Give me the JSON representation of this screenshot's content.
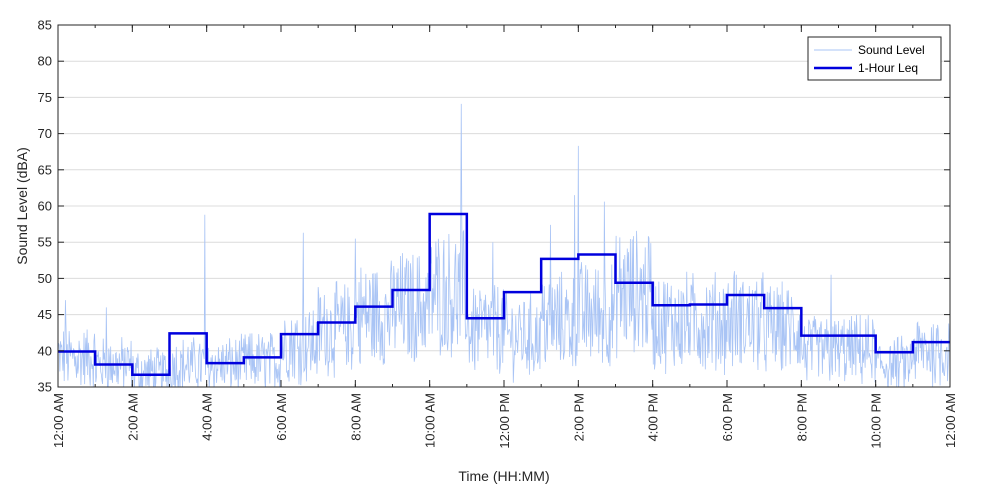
{
  "chart_data": {
    "type": "line",
    "xlabel": "Time (HH:MM)",
    "ylabel": "Sound Level (dBA)",
    "ylim": [
      35,
      85
    ],
    "y_ticks": [
      35,
      40,
      45,
      50,
      55,
      60,
      65,
      70,
      75,
      80,
      85
    ],
    "x_range_hours": [
      0,
      24
    ],
    "x_ticks": [
      {
        "hour": 0,
        "label": "12:00 AM"
      },
      {
        "hour": 2,
        "label": "2:00 AM"
      },
      {
        "hour": 4,
        "label": "4:00 AM"
      },
      {
        "hour": 6,
        "label": "6:00 AM"
      },
      {
        "hour": 8,
        "label": "8:00 AM"
      },
      {
        "hour": 10,
        "label": "10:00 AM"
      },
      {
        "hour": 12,
        "label": "12:00 PM"
      },
      {
        "hour": 14,
        "label": "2:00 PM"
      },
      {
        "hour": 16,
        "label": "4:00 PM"
      },
      {
        "hour": 18,
        "label": "6:00 PM"
      },
      {
        "hour": 20,
        "label": "8:00 PM"
      },
      {
        "hour": 22,
        "label": "10:00 PM"
      },
      {
        "hour": 24,
        "label": "12:00 AM"
      }
    ],
    "grid": "horizontal",
    "legend_position": "top-right",
    "series": [
      {
        "name": "Sound Level",
        "style": "thin-line",
        "color": "#a9c4f5",
        "hour_base_levels": [
          39,
          38,
          37,
          38,
          38,
          38.5,
          41,
          43,
          45,
          46,
          48,
          43,
          42,
          44,
          45,
          48,
          44,
          44,
          44,
          43,
          40,
          40,
          38,
          40
        ],
        "peaks": [
          {
            "hour": 0.2,
            "y": 47
          },
          {
            "hour": 1.3,
            "y": 46
          },
          {
            "hour": 3.95,
            "y": 58.8
          },
          {
            "hour": 6.6,
            "y": 56.3
          },
          {
            "hour": 8.0,
            "y": 55.5
          },
          {
            "hour": 10.85,
            "y": 74.1
          },
          {
            "hour": 11.7,
            "y": 55
          },
          {
            "hour": 13.25,
            "y": 57.4
          },
          {
            "hour": 13.9,
            "y": 61.5
          },
          {
            "hour": 14.0,
            "y": 68.3
          },
          {
            "hour": 14.7,
            "y": 60.6
          },
          {
            "hour": 18.2,
            "y": 51
          },
          {
            "hour": 20.8,
            "y": 50.5
          }
        ]
      },
      {
        "name": "1-Hour Leq",
        "style": "step",
        "color": "#0000dd",
        "hours": [
          0,
          1,
          2,
          3,
          4,
          5,
          6,
          7,
          8,
          9,
          10,
          11,
          12,
          13,
          14,
          15,
          16,
          17,
          18,
          19,
          20,
          21,
          22,
          23
        ],
        "values": [
          39.9,
          38.1,
          36.7,
          42.4,
          38.3,
          39.1,
          42.3,
          43.9,
          46.1,
          48.4,
          58.9,
          44.5,
          48.1,
          52.7,
          53.3,
          49.4,
          46.3,
          46.4,
          47.7,
          45.9,
          42.1,
          42.1,
          39.8,
          41.2
        ]
      }
    ]
  }
}
